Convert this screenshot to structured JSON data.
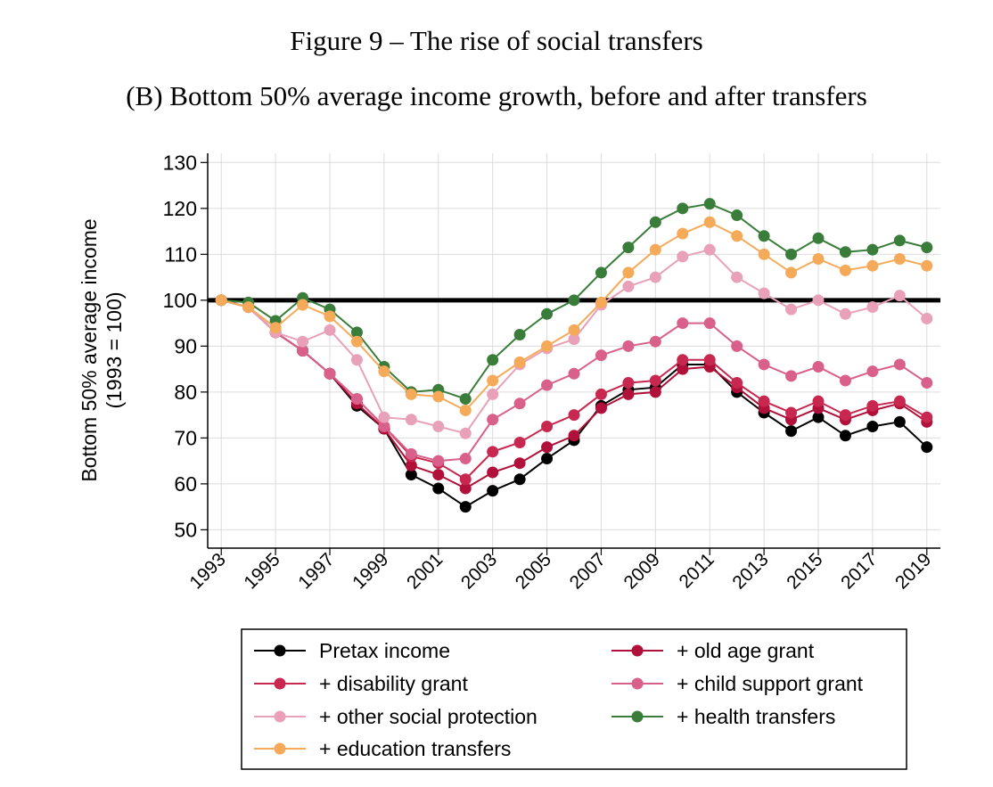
{
  "figure": {
    "title": "Figure 9 – The rise of social transfers",
    "subtitle": "(B) Bottom 50% average income growth, before and after transfers"
  },
  "chart_data": {
    "type": "line",
    "ylabel_line1": "Bottom 50% average income",
    "ylabel_line2": "(1993 = 100)",
    "xlabel": "",
    "ylim": [
      46,
      132
    ],
    "xlim": [
      1992.5,
      2019.5
    ],
    "yticks": [
      50,
      60,
      70,
      80,
      90,
      100,
      110,
      120,
      130
    ],
    "xticks": [
      1993,
      1995,
      1997,
      1999,
      2001,
      2003,
      2005,
      2007,
      2009,
      2011,
      2013,
      2015,
      2017,
      2019
    ],
    "grid": true,
    "reference_line": 100,
    "legend_placement": "bottom",
    "x": [
      1993,
      1994,
      1995,
      1996,
      1997,
      1998,
      1999,
      2000,
      2001,
      2002,
      2003,
      2004,
      2005,
      2006,
      2007,
      2008,
      2009,
      2010,
      2011,
      2012,
      2013,
      2014,
      2015,
      2016,
      2017,
      2018,
      2019
    ],
    "series": [
      {
        "name": "Pretax income",
        "color": "#000000",
        "values": [
          100,
          98.5,
          93,
          89,
          84,
          77,
          72,
          62,
          59,
          55,
          58.5,
          61,
          65.5,
          69.5,
          77,
          80.5,
          81,
          86,
          86,
          80,
          75.5,
          71.5,
          74.5,
          70.5,
          72.5,
          73.5,
          68
        ]
      },
      {
        "name": "+ old age grant",
        "color": "#b0103a",
        "values": [
          100,
          98.5,
          93,
          89,
          84,
          77.5,
          72,
          64,
          62,
          59,
          62.5,
          64.5,
          68,
          70.5,
          76.5,
          79.5,
          80,
          85,
          85.5,
          81,
          76.5,
          74,
          76.5,
          74,
          76,
          77.5,
          73.5
        ]
      },
      {
        "name": "+ disability grant",
        "color": "#c8284f",
        "values": [
          100,
          98.5,
          93,
          89,
          84,
          78.5,
          72.5,
          66,
          64.5,
          61,
          67,
          69,
          72.5,
          75,
          79.5,
          82,
          82.5,
          87,
          87,
          82,
          78,
          75.5,
          78,
          75,
          77,
          78,
          74.5
        ]
      },
      {
        "name": "+ child support grant",
        "color": "#d9608a",
        "values": [
          100,
          98.5,
          93,
          89,
          84,
          78.5,
          72.5,
          66.5,
          65,
          65.5,
          74,
          77.5,
          81.5,
          84,
          88,
          90,
          91,
          95,
          95,
          90,
          86,
          83.5,
          85.5,
          82.5,
          84.5,
          86,
          82
        ]
      },
      {
        "name": "+ other social protection",
        "color": "#e8a1b8",
        "values": [
          100,
          98.5,
          93,
          91,
          93.5,
          87,
          74.5,
          74,
          72.5,
          71,
          79.5,
          86,
          89.5,
          91.5,
          99,
          103,
          105,
          109.5,
          111,
          105,
          101.5,
          98,
          100,
          97,
          98.5,
          101,
          96
        ]
      },
      {
        "name": "+ health transfers",
        "color": "#3a7d3a",
        "values": [
          100,
          99.5,
          95.5,
          100.5,
          98,
          93,
          85.5,
          80,
          80.5,
          78.5,
          87,
          92.5,
          97,
          100,
          106,
          111.5,
          117,
          120,
          121,
          118.5,
          114,
          110,
          113.5,
          110.5,
          111,
          113,
          111.5
        ]
      },
      {
        "name": "+ education transfers",
        "color": "#f5aa5a",
        "values": [
          100,
          98.5,
          94,
          99,
          96.5,
          91,
          84.5,
          79.5,
          79,
          76,
          82.5,
          86.5,
          90,
          93.5,
          99.5,
          106,
          111,
          114.5,
          117,
          114,
          110,
          106,
          109,
          106.5,
          107.5,
          109,
          107.5
        ]
      }
    ],
    "legend_order": [
      0,
      1,
      2,
      3,
      4,
      5,
      6
    ]
  }
}
